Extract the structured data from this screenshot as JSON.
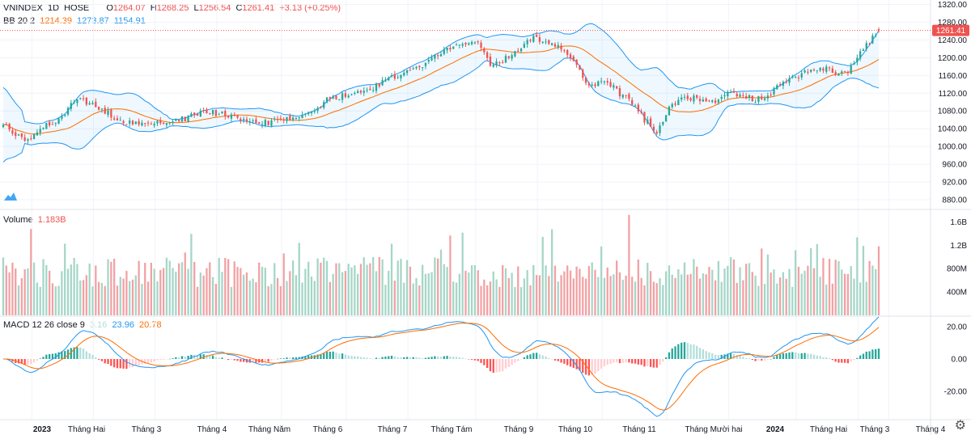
{
  "header": {
    "symbol": "VNINDEX",
    "interval": "1D",
    "exchange": "HOSE",
    "o_label": "O",
    "o": "1264.07",
    "h_label": "H",
    "h": "1268.25",
    "l_label": "L",
    "l": "1256.54",
    "c_label": "C",
    "c": "1261.41",
    "change": "+3.13 (+0.25%)"
  },
  "bb_legend": {
    "name": "BB 20 2",
    "basis": "1214.39",
    "upper": "1273.87",
    "lower": "1154.91"
  },
  "volume_legend": {
    "name": "Volume",
    "value": "1.183B"
  },
  "macd_legend": {
    "name": "MACD 12 26 close 9",
    "hist": "3.16",
    "macd": "23.96",
    "signal": "20.78"
  },
  "last_price_label": "1261.41",
  "colors": {
    "up": "#26a69a",
    "down": "#ef5350",
    "bb_band": "#2196f3",
    "bb_basis": "#ff6d00",
    "vol_up": "#a5d6c7",
    "vol_down": "#f2a1a4",
    "hist_up_strong": "#26a69a",
    "hist_up_weak": "#b2dfdb",
    "hist_down_strong": "#ff5252",
    "hist_down_weak": "#ffcdd2",
    "price_label_bg": "#ef5350"
  },
  "chart_data": [
    {
      "type": "candlestick",
      "title": "VNINDEX 1D HOSE",
      "ylim": [
        860,
        1330
      ],
      "y_ticks": [
        "1320.00",
        "1280.00",
        "1240.00",
        "1200.00",
        "1160.00",
        "1120.00",
        "1080.00",
        "1040.00",
        "1000.00",
        "960.00",
        "920.00",
        "880.00"
      ],
      "x_ticks": [
        "2023",
        "Tháng Hai",
        "Tháng 3",
        "Tháng 4",
        "Tháng Năm",
        "Tháng 6",
        "Tháng 7",
        "Tháng Tám",
        "Tháng 9",
        "Tháng 10",
        "Tháng 11",
        "Tháng Mười hai",
        "2024",
        "Tháng Hai",
        "Tháng 3",
        "Tháng 4"
      ],
      "x_ticks_bold": [
        "2023",
        "2024"
      ],
      "close_anchors": [
        [
          0,
          1050
        ],
        [
          8,
          1010
        ],
        [
          12,
          1045
        ],
        [
          18,
          1060
        ],
        [
          24,
          1110
        ],
        [
          30,
          1090
        ],
        [
          38,
          1060
        ],
        [
          44,
          1048
        ],
        [
          52,
          1055
        ],
        [
          60,
          1065
        ],
        [
          66,
          1080
        ],
        [
          72,
          1070
        ],
        [
          80,
          1055
        ],
        [
          86,
          1055
        ],
        [
          94,
          1065
        ],
        [
          100,
          1080
        ],
        [
          106,
          1110
        ],
        [
          112,
          1115
        ],
        [
          118,
          1125
        ],
        [
          124,
          1150
        ],
        [
          130,
          1165
        ],
        [
          136,
          1185
        ],
        [
          142,
          1210
        ],
        [
          148,
          1230
        ],
        [
          153,
          1240
        ],
        [
          156,
          1215
        ],
        [
          158,
          1180
        ],
        [
          162,
          1195
        ],
        [
          168,
          1225
        ],
        [
          172,
          1245
        ],
        [
          176,
          1240
        ],
        [
          182,
          1215
        ],
        [
          186,
          1180
        ],
        [
          190,
          1135
        ],
        [
          195,
          1150
        ],
        [
          200,
          1120
        ],
        [
          204,
          1100
        ],
        [
          208,
          1060
        ],
        [
          212,
          1035
        ],
        [
          216,
          1085
        ],
        [
          220,
          1105
        ],
        [
          224,
          1110
        ],
        [
          228,
          1100
        ],
        [
          232,
          1105
        ],
        [
          236,
          1120
        ],
        [
          240,
          1115
        ],
        [
          244,
          1105
        ],
        [
          248,
          1115
        ],
        [
          252,
          1140
        ],
        [
          256,
          1155
        ],
        [
          262,
          1170
        ],
        [
          266,
          1175
        ],
        [
          270,
          1168
        ],
        [
          274,
          1170
        ],
        [
          278,
          1210
        ],
        [
          281,
          1235
        ],
        [
          284,
          1261
        ]
      ]
    },
    {
      "type": "bar",
      "title": "Volume",
      "ylim": [
        0,
        1800
      ],
      "y_ticks": [
        "1.6B",
        "1.2B",
        "800M",
        "400M"
      ],
      "last_value": "1.183B"
    },
    {
      "type": "line",
      "title": "MACD 12 26 close 9",
      "ylim": [
        -37,
        26
      ],
      "y_ticks": [
        "20.00",
        "0.00",
        "-20.00"
      ],
      "last_values": {
        "histogram": "3.16",
        "macd": "23.96",
        "signal": "20.78"
      }
    }
  ]
}
